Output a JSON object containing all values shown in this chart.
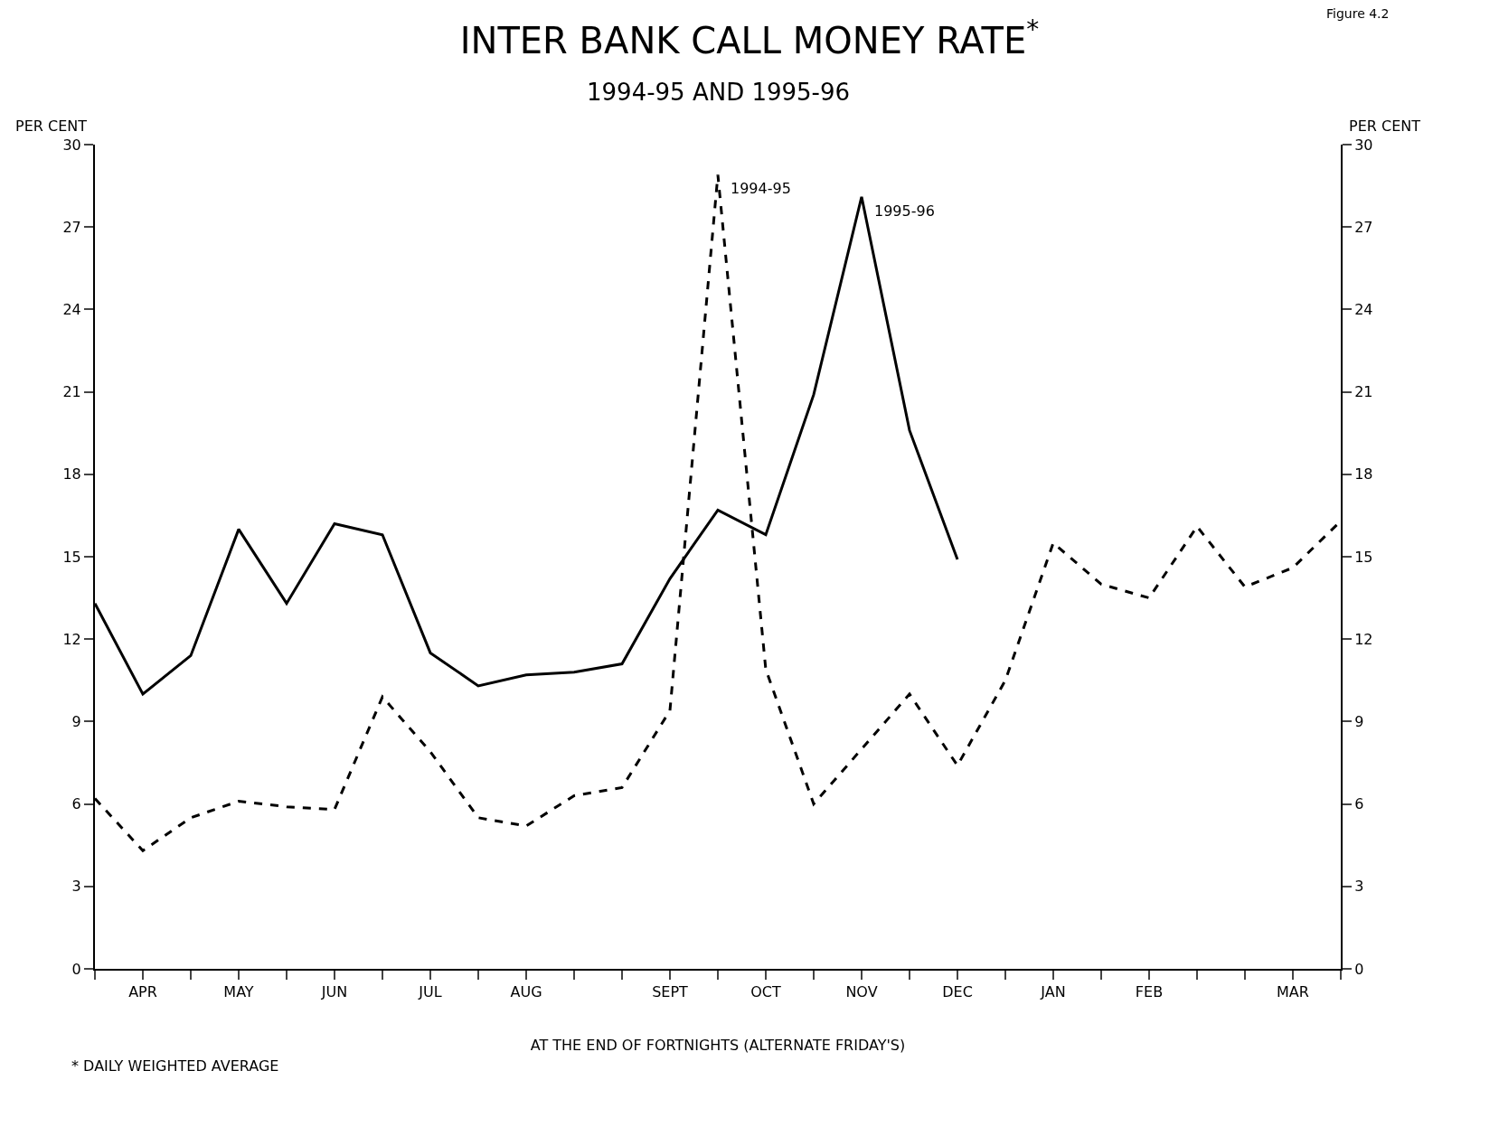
{
  "chart_data": {
    "type": "line",
    "title": "INTER BANK CALL MONEY RATE$^{*}$",
    "subtitle": "1994-95 AND 1995-96",
    "xlabel": "AT THE END OF FORTNIGHTS (ALTERNATE FRIDAY'S)",
    "ylabel": "PER CENT",
    "y2label": "PER CENT",
    "annotations": [
      "* DAILY WEIGHTED AVERAGE",
      "Figure 4.2"
    ],
    "categories": [
      null,
      "APR",
      null,
      "MAY",
      null,
      "JUN",
      null,
      "JUL",
      null,
      "AUG",
      null,
      null,
      "SEPT",
      null,
      "OCT",
      null,
      "NOV",
      null,
      "DEC",
      null,
      "JAN",
      null,
      "FEB",
      null,
      null,
      "MAR",
      null
    ],
    "series": [
      {
        "name": "1995-96",
        "color": "#000000",
        "line_style": "solid",
        "values": [
          13.3,
          10.0,
          11.4,
          16.0,
          13.3,
          16.2,
          15.8,
          11.5,
          10.3,
          10.7,
          10.8,
          11.1,
          14.2,
          16.7,
          15.8,
          20.9,
          28.1,
          19.6,
          14.9,
          null,
          null,
          null,
          null,
          null,
          null,
          null,
          null
        ]
      },
      {
        "name": "1994-95",
        "color": "#000000",
        "line_style": "dashed",
        "values": [
          6.2,
          4.3,
          5.5,
          6.1,
          5.9,
          5.8,
          9.9,
          7.9,
          5.5,
          5.2,
          6.3,
          6.6,
          9.4,
          28.9,
          10.9,
          6.0,
          8.0,
          10.0,
          7.4,
          10.5,
          15.5,
          14.0,
          13.5,
          16.1,
          13.9,
          14.6,
          16.3
        ]
      }
    ],
    "ylim": [
      0,
      30
    ],
    "yticks": [
      0,
      3,
      6,
      9,
      12,
      15,
      18,
      21,
      24,
      27,
      30
    ],
    "y2lim": [
      0,
      30
    ],
    "y2ticks": [
      0,
      3,
      6,
      9,
      12,
      15,
      18,
      21,
      24,
      27,
      30
    ],
    "grid": false,
    "legend": false
  }
}
